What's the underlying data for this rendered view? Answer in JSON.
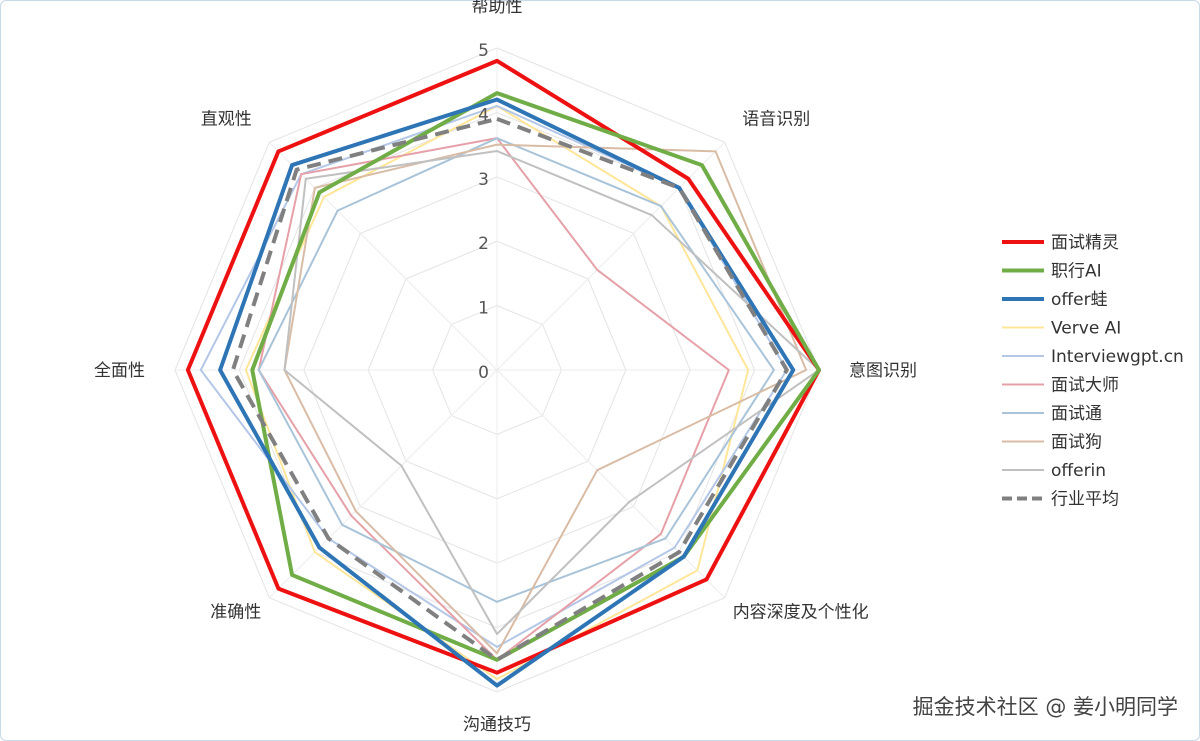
{
  "chart_data": {
    "type": "radar",
    "axes": [
      "帮助性",
      "语音识别",
      "意图识别",
      "内容深度及个性化",
      "沟通技巧",
      "准确性",
      "全面性",
      "直观性"
    ],
    "ticks": [
      "0",
      "1",
      "2",
      "3",
      "4",
      "5"
    ],
    "rlim": [
      0,
      5
    ],
    "legend_position": "right",
    "series": [
      {
        "name": "面试精灵",
        "color": "#ee1111",
        "width": 4,
        "dash": false,
        "values": [
          4.8,
          4.2,
          5.0,
          4.6,
          4.7,
          4.8,
          4.8,
          4.8
        ]
      },
      {
        "name": "职行AI",
        "color": "#70ad47",
        "width": 4,
        "dash": false,
        "values": [
          4.3,
          4.5,
          5.0,
          4.1,
          4.5,
          4.5,
          3.8,
          3.9
        ]
      },
      {
        "name": "offer蛙",
        "color": "#2e75b6",
        "width": 4,
        "dash": false,
        "values": [
          4.2,
          4.0,
          4.6,
          4.1,
          4.9,
          3.9,
          4.3,
          4.5
        ]
      },
      {
        "name": "Verve AI",
        "color": "#ffe699",
        "width": 2,
        "dash": false,
        "values": [
          4.1,
          3.6,
          3.9,
          4.4,
          4.8,
          4.0,
          3.9,
          3.8
        ]
      },
      {
        "name": "Interviewgpt.cn",
        "color": "#b4c7e7",
        "width": 2,
        "dash": false,
        "values": [
          4.1,
          4.0,
          4.5,
          3.9,
          4.3,
          3.7,
          4.6,
          4.3
        ]
      },
      {
        "name": "面试大师",
        "color": "#e6a0a8",
        "width": 2,
        "dash": false,
        "values": [
          3.6,
          2.2,
          3.6,
          3.6,
          4.5,
          3.2,
          3.7,
          4.3
        ]
      },
      {
        "name": "面试通",
        "color": "#a9c4d9",
        "width": 2,
        "dash": false,
        "values": [
          3.6,
          3.6,
          4.3,
          3.7,
          3.6,
          3.4,
          3.7,
          3.5
        ]
      },
      {
        "name": "面试狗",
        "color": "#d9bca5",
        "width": 2,
        "dash": false,
        "values": [
          3.5,
          4.8,
          4.8,
          2.2,
          4.4,
          3.1,
          3.3,
          4.0
        ]
      },
      {
        "name": "offerin",
        "color": "#c0c0c0",
        "width": 2,
        "dash": false,
        "values": [
          3.4,
          3.4,
          5.0,
          2.9,
          4.1,
          2.1,
          3.3,
          4.2
        ]
      },
      {
        "name": "行业平均",
        "color": "#808080",
        "width": 4,
        "dash": true,
        "values": [
          3.9,
          4.0,
          4.5,
          4.0,
          4.5,
          3.7,
          4.1,
          4.4
        ]
      }
    ]
  },
  "watermark": "掘金技术社区 @ 姜小明同学"
}
